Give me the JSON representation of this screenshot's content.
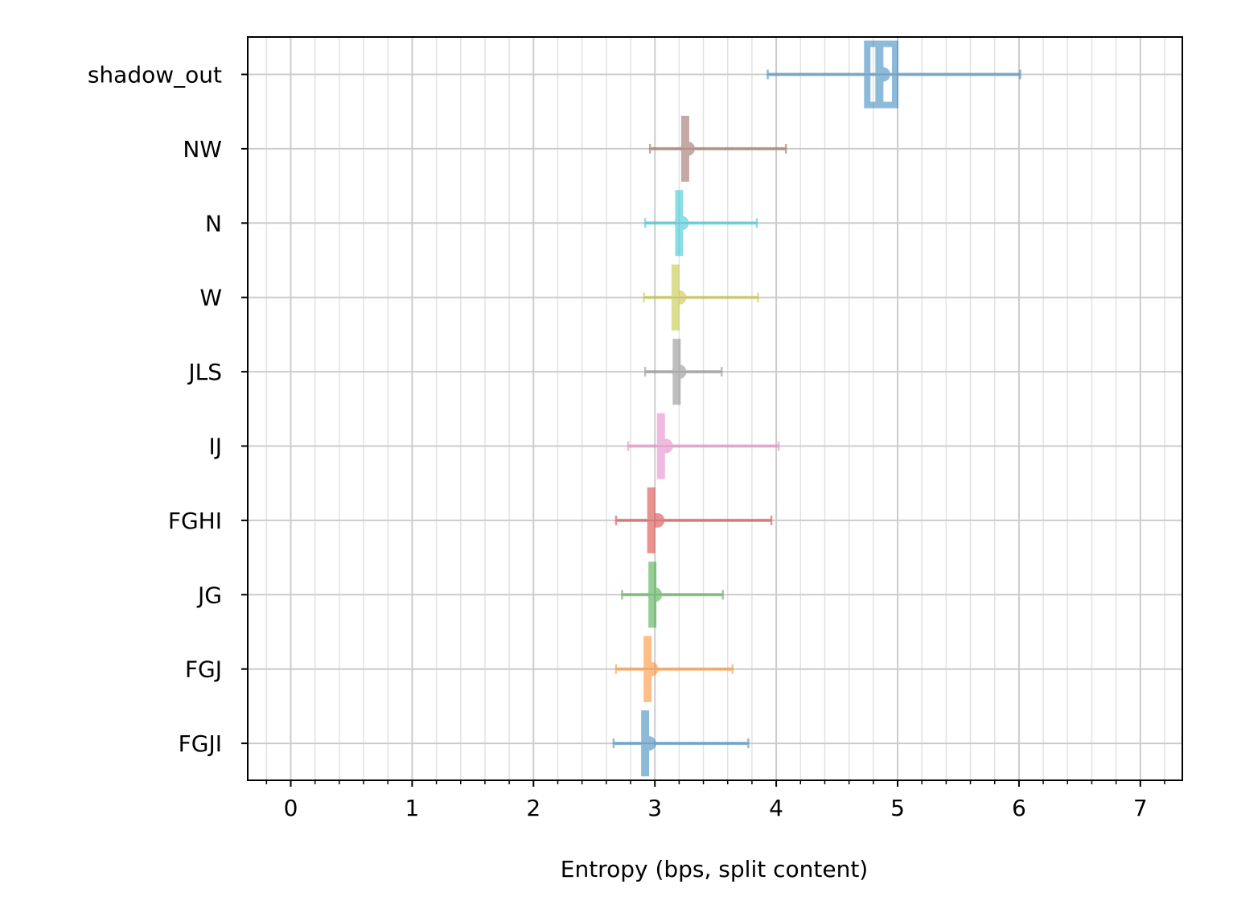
{
  "chart_data": {
    "type": "errorbar",
    "title": "",
    "xlabel": "Entropy (bps, split content)",
    "ylabel": "",
    "xlim": [
      -0.35,
      7.35
    ],
    "xticks": [
      0,
      1,
      2,
      3,
      4,
      5,
      6,
      7
    ],
    "xtick_labels": [
      "0",
      "1",
      "2",
      "3",
      "4",
      "5",
      "6",
      "7"
    ],
    "minor_xtick_step": 0.2,
    "grid": true,
    "categories": [
      "shadow_out",
      "NW",
      "N",
      "W",
      "JLS",
      "IJ",
      "FGHI",
      "JG",
      "FGJ",
      "FGJI"
    ],
    "series": [
      {
        "category": "shadow_out",
        "point": 4.88,
        "err_low": 3.93,
        "err_high": 6.01,
        "bar": 4.85,
        "box_low": 4.75,
        "box_high": 4.98,
        "color": "#1f77b4"
      },
      {
        "category": "NW",
        "point": 3.27,
        "err_low": 2.96,
        "err_high": 4.08,
        "bar": 3.25,
        "color": "#8c564b"
      },
      {
        "category": "N",
        "point": 3.22,
        "err_low": 2.92,
        "err_high": 3.84,
        "bar": 3.2,
        "color": "#17becf"
      },
      {
        "category": "W",
        "point": 3.2,
        "err_low": 2.91,
        "err_high": 3.85,
        "bar": 3.17,
        "color": "#bcbd22"
      },
      {
        "category": "JLS",
        "point": 3.2,
        "err_low": 2.92,
        "err_high": 3.55,
        "bar": 3.18,
        "color": "#7f7f7f"
      },
      {
        "category": "IJ",
        "point": 3.09,
        "err_low": 2.78,
        "err_high": 4.02,
        "bar": 3.05,
        "color": "#e377c2"
      },
      {
        "category": "FGHI",
        "point": 3.02,
        "err_low": 2.68,
        "err_high": 3.96,
        "bar": 2.97,
        "color": "#d62728"
      },
      {
        "category": "JG",
        "point": 3.0,
        "err_low": 2.73,
        "err_high": 3.56,
        "bar": 2.98,
        "color": "#2ca02c"
      },
      {
        "category": "FGJ",
        "point": 2.97,
        "err_low": 2.68,
        "err_high": 3.64,
        "bar": 2.94,
        "color": "#ff7f0e"
      },
      {
        "category": "FGJI",
        "point": 2.95,
        "err_low": 2.66,
        "err_high": 3.77,
        "bar": 2.92,
        "color": "#1f77b4"
      }
    ]
  }
}
